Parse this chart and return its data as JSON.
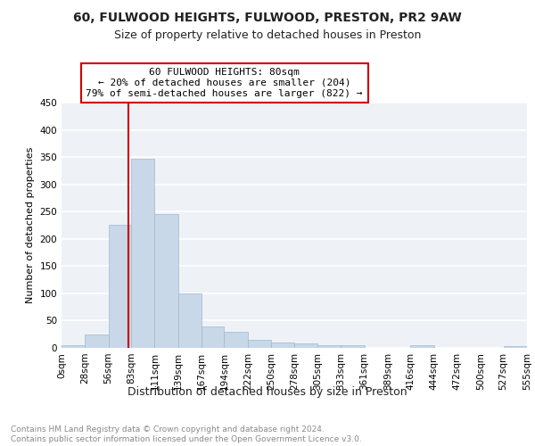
{
  "title1": "60, FULWOOD HEIGHTS, FULWOOD, PRESTON, PR2 9AW",
  "title2": "Size of property relative to detached houses in Preston",
  "xlabel": "Distribution of detached houses by size in Preston",
  "ylabel": "Number of detached properties",
  "bar_color": "#c8d8e8",
  "bar_edge_color": "#a0b8d0",
  "background_color": "#eef2f7",
  "grid_color": "#ffffff",
  "property_line_color": "#cc0000",
  "annotation_box_color": "#cc0000",
  "annotation_text": "60 FULWOOD HEIGHTS: 80sqm\n← 20% of detached houses are smaller (204)\n79% of semi-detached houses are larger (822) →",
  "property_value": 80,
  "bin_edges": [
    0,
    28,
    56,
    83,
    111,
    139,
    167,
    194,
    222,
    250,
    278,
    305,
    333,
    361,
    389,
    416,
    444,
    472,
    500,
    527,
    555
  ],
  "bar_heights": [
    5,
    24,
    226,
    347,
    245,
    100,
    40,
    30,
    14,
    10,
    9,
    5,
    5,
    0,
    0,
    5,
    0,
    0,
    0,
    3
  ],
  "tick_labels": [
    "0sqm",
    "28sqm",
    "56sqm",
    "83sqm",
    "111sqm",
    "139sqm",
    "167sqm",
    "194sqm",
    "222sqm",
    "250sqm",
    "278sqm",
    "305sqm",
    "333sqm",
    "361sqm",
    "389sqm",
    "416sqm",
    "444sqm",
    "472sqm",
    "500sqm",
    "527sqm",
    "555sqm"
  ],
  "ylim": [
    0,
    450
  ],
  "yticks": [
    0,
    50,
    100,
    150,
    200,
    250,
    300,
    350,
    400,
    450
  ],
  "footer_text": "Contains HM Land Registry data © Crown copyright and database right 2024.\nContains public sector information licensed under the Open Government Licence v3.0.",
  "title1_fontsize": 10,
  "title2_fontsize": 9,
  "xlabel_fontsize": 9,
  "ylabel_fontsize": 8,
  "tick_fontsize": 7.5,
  "annotation_fontsize": 8,
  "footer_fontsize": 6.5
}
